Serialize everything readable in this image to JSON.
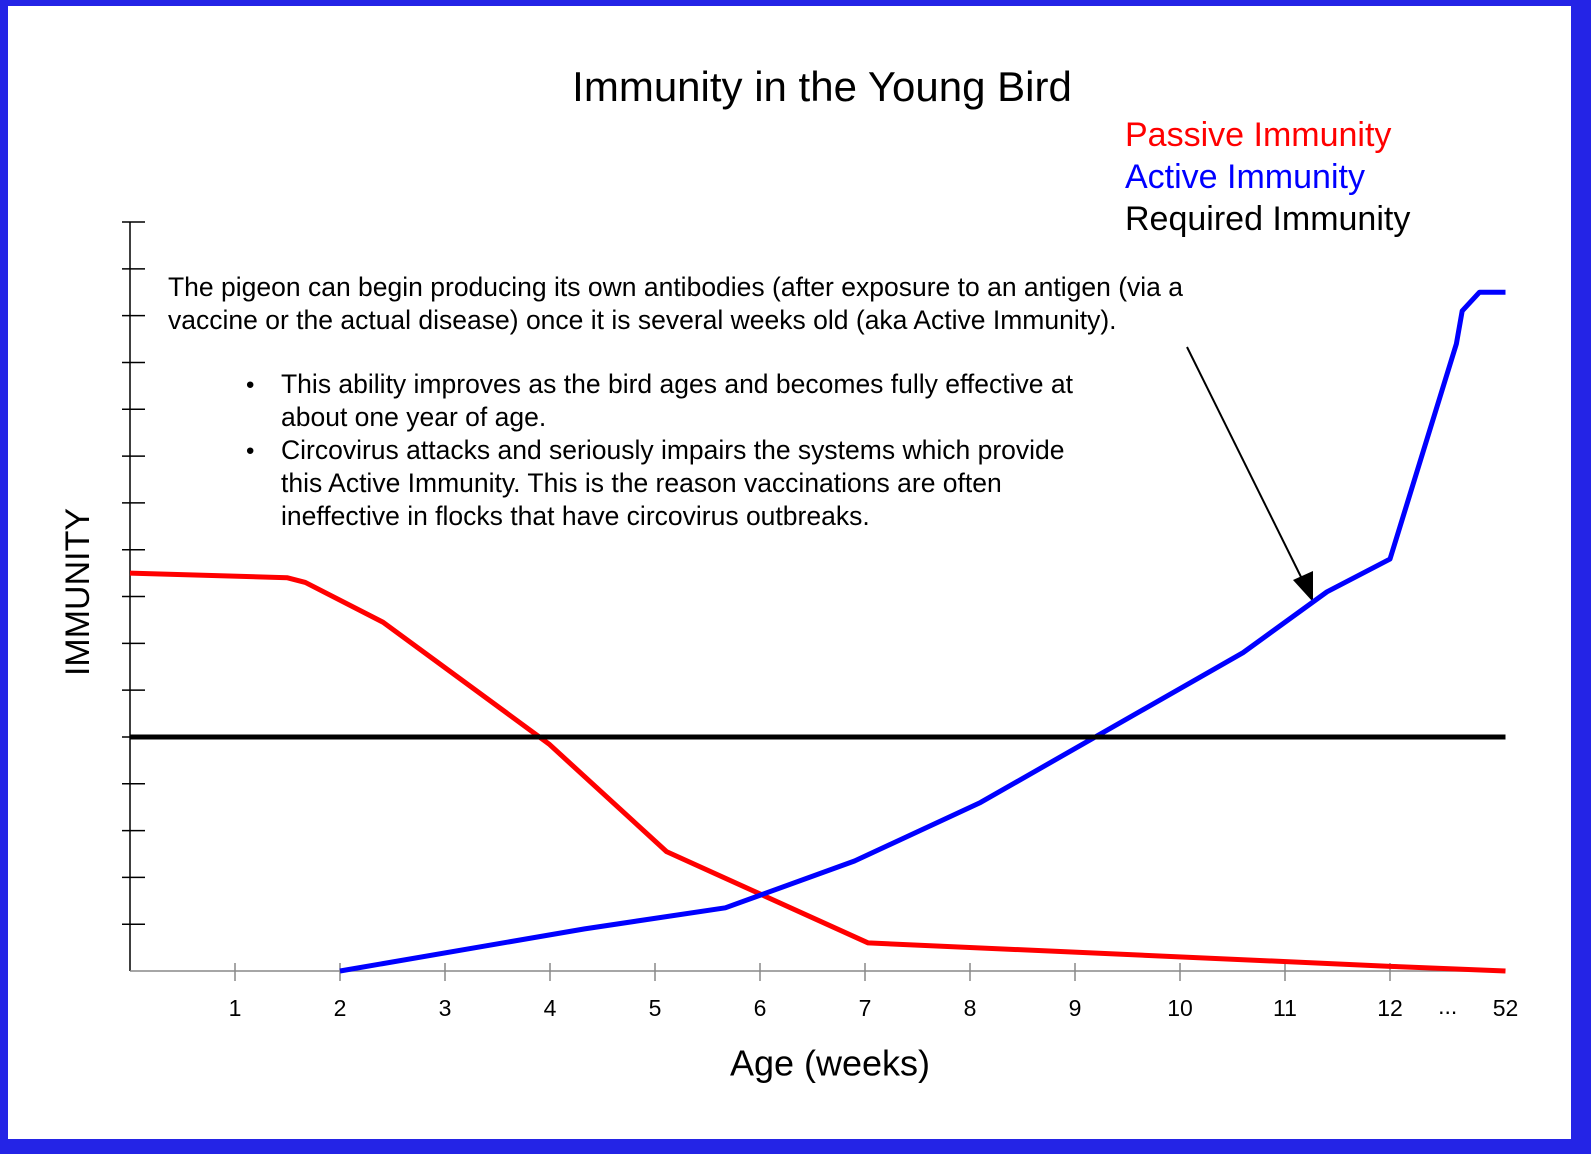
{
  "chart_data": {
    "type": "line",
    "title": "Immunity in the Young Bird",
    "x_label": "Age (weeks)",
    "y_label": "IMMUNITY",
    "xlim": [
      0,
      52
    ],
    "xticks": [
      1,
      2,
      3,
      4,
      5,
      6,
      7,
      8,
      9,
      10,
      11,
      12,
      52
    ],
    "axis_break": "...",
    "ylim": [
      0,
      16
    ],
    "yticks": [
      1,
      2,
      3,
      4,
      5,
      6,
      7,
      8,
      9,
      10,
      11,
      12,
      13,
      14,
      15,
      16
    ],
    "series": [
      {
        "name": "Passive Immunity",
        "color": "#ff0000",
        "x": [
          0,
          1.5,
          1.67,
          2.41,
          3.99,
          5.11,
          7.03,
          12.05,
          52
        ],
        "values": [
          8.5,
          8.4,
          8.3,
          7.45,
          4.85,
          2.55,
          0.6,
          0.1,
          0
        ]
      },
      {
        "name": "Active Immunity",
        "color": "#0000ff",
        "x": [
          2,
          4.33,
          5.67,
          6.9,
          8.1,
          10.6,
          11.4,
          12,
          35,
          37,
          43,
          52
        ],
        "values": [
          0,
          0.9,
          1.35,
          2.35,
          3.6,
          6.8,
          8.1,
          8.8,
          13.4,
          14.1,
          14.5,
          14.5
        ]
      },
      {
        "name": "Required Immunity",
        "color": "#000000",
        "x": [
          0,
          52
        ],
        "values": [
          5,
          5
        ]
      }
    ],
    "note": {
      "paragraph": [
        "The pigeon can begin producing its own antibodies (after exposure to an antigen (via a",
        "vaccine or the actual disease) once it is several weeks old (aka Active Immunity)."
      ],
      "bullets": [
        [
          "This ability improves as the bird ages and becomes fully effective at",
          "about one year of age."
        ],
        [
          "Circovirus attacks and seriously impairs the systems which provide",
          "this Active Immunity. This is the reason vaccinations are often",
          "ineffective in flocks that have circovirus outbreaks."
        ]
      ]
    }
  }
}
